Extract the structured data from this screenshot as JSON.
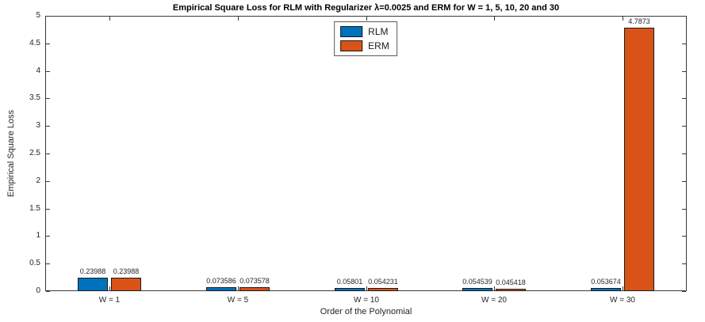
{
  "title": "Empirical Square Loss for RLM with Regularizer λ=0.0025 and ERM for W = 1, 5, 10, 20 and 30",
  "chart_data": {
    "type": "bar",
    "categories": [
      "W = 1",
      "W = 5",
      "W = 10",
      "W = 20",
      "W = 30"
    ],
    "series": [
      {
        "name": "RLM",
        "color": "#0072BD",
        "values": [
          0.23988,
          0.073586,
          0.05801,
          0.054539,
          0.053674
        ],
        "labels": [
          "0.23988",
          "0.073586",
          "0.05801",
          "0.054539",
          "0.053674"
        ]
      },
      {
        "name": "ERM",
        "color": "#D95319",
        "values": [
          0.23988,
          0.073578,
          0.054231,
          0.045418,
          4.7873
        ],
        "labels": [
          "0.23988",
          "0.073578",
          "0.054231",
          "0.045418",
          "4.7873"
        ]
      }
    ],
    "xlabel": "Order of the Polynomial",
    "ylabel": "Empirical Square Loss",
    "ylim": [
      0,
      5
    ],
    "ytick_step": 0.5,
    "grid": false,
    "legend_position": "top-center"
  }
}
